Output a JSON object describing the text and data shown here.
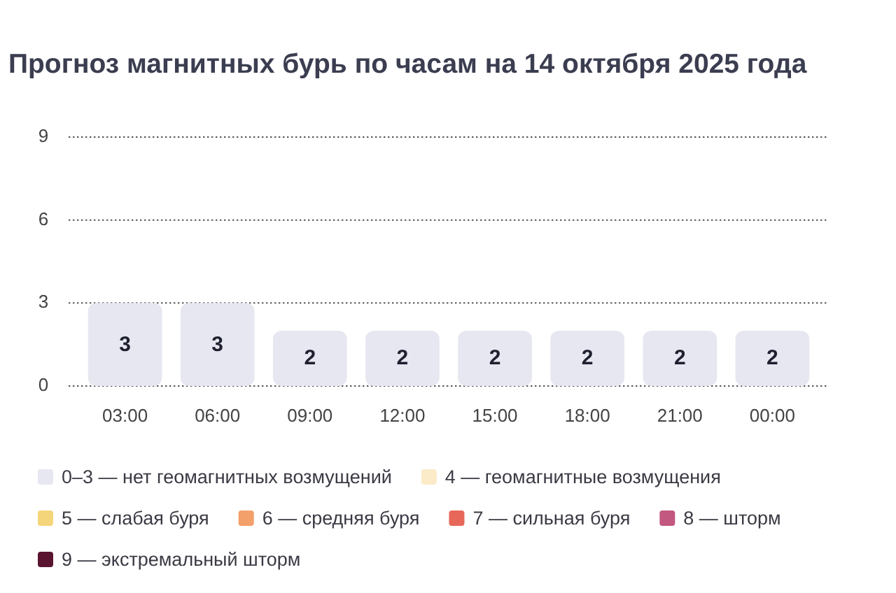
{
  "chart_data": {
    "type": "bar",
    "title": "Прогноз магнитных бурь по часам на 14 октября 2025 года",
    "categories": [
      "03:00",
      "06:00",
      "09:00",
      "12:00",
      "15:00",
      "18:00",
      "21:00",
      "00:00"
    ],
    "stacked": true,
    "series": [
      {
        "name": "0–3 — нет геомагнитных возмущений",
        "color": "#e6e7f0",
        "values": [
          3,
          3,
          2,
          2,
          2,
          2,
          2,
          2
        ]
      },
      {
        "name": "4 — геомагнитные возмущения",
        "color": "#fbebc8",
        "values": [
          null,
          null,
          null,
          null,
          null,
          null,
          null,
          null
        ]
      },
      {
        "name": "5 — слабая буря",
        "color": "#f5d57a",
        "values": [
          null,
          null,
          null,
          null,
          null,
          null,
          null,
          null
        ]
      },
      {
        "name": "6 — средняя буря",
        "color": "#f3a06a",
        "values": [
          null,
          null,
          null,
          null,
          null,
          null,
          null,
          null
        ]
      },
      {
        "name": "7 — сильная буря",
        "color": "#e7685a",
        "values": [
          null,
          null,
          null,
          null,
          null,
          null,
          null,
          null
        ]
      },
      {
        "name": "8 — шторм",
        "color": "#c2577f",
        "values": [
          null,
          null,
          null,
          null,
          null,
          null,
          null,
          null
        ]
      },
      {
        "name": "9 — экстремальный шторм",
        "color": "#5a1430",
        "values": [
          null,
          null,
          null,
          null,
          null,
          null,
          null,
          null
        ]
      }
    ],
    "ylim": [
      0,
      9
    ],
    "yticks": [
      0,
      3,
      6,
      9
    ],
    "grid": "y",
    "legend": "bottom",
    "data_labels": true
  }
}
